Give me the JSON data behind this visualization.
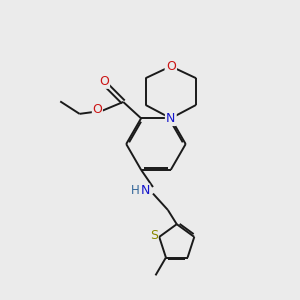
{
  "bg_color": "#ebebeb",
  "bond_color": "#1a1a1a",
  "N_color": "#1414cc",
  "O_color": "#cc1414",
  "S_color": "#888800",
  "NH_color": "#336699",
  "lw": 1.4,
  "dbo": 0.055,
  "figure_size": [
    3.0,
    3.0
  ],
  "dpi": 100,
  "xlim": [
    0,
    10
  ],
  "ylim": [
    0,
    10
  ]
}
